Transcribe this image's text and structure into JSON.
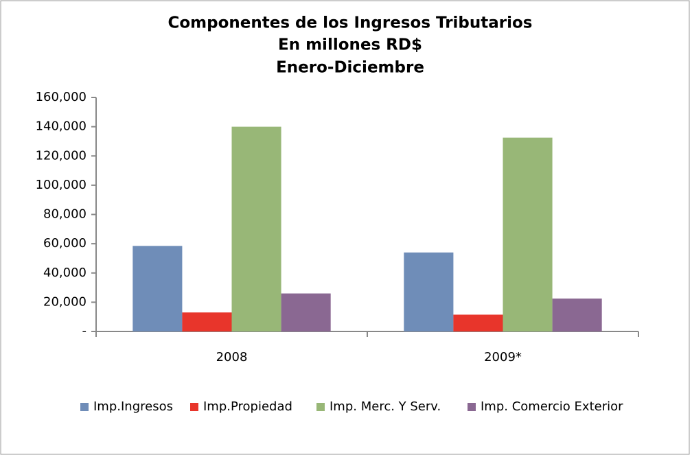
{
  "chart_data": {
    "type": "bar",
    "title": "Componentes de los Ingresos Tributarios",
    "subtitle": [
      "En millones RD$",
      "Enero-Diciembre"
    ],
    "categories": [
      "2008",
      "2009*"
    ],
    "series": [
      {
        "name": "Imp.Ingresos",
        "color": "#6f8db8",
        "values": [
          58500,
          54000
        ]
      },
      {
        "name": "Imp.Propiedad",
        "color": "#e8352b",
        "values": [
          13000,
          11500
        ]
      },
      {
        "name": "Imp. Merc. Y Serv.",
        "color": "#98b777",
        "values": [
          140000,
          132500
        ]
      },
      {
        "name": "Imp. Comercio Exterior",
        "color": "#8a6892",
        "values": [
          26000,
          22500
        ]
      }
    ],
    "ylim": [
      0,
      160000
    ],
    "yticks": [
      {
        "value": 0,
        "label": "-"
      },
      {
        "value": 20000,
        "label": "20,000"
      },
      {
        "value": 40000,
        "label": "40,000"
      },
      {
        "value": 60000,
        "label": "60,000"
      },
      {
        "value": 80000,
        "label": "80,000"
      },
      {
        "value": 100000,
        "label": "100,000"
      },
      {
        "value": 120000,
        "label": "120,000"
      },
      {
        "value": 140000,
        "label": "140,000"
      },
      {
        "value": 160000,
        "label": "160,000"
      }
    ],
    "grid": false,
    "legend": "bottom"
  }
}
